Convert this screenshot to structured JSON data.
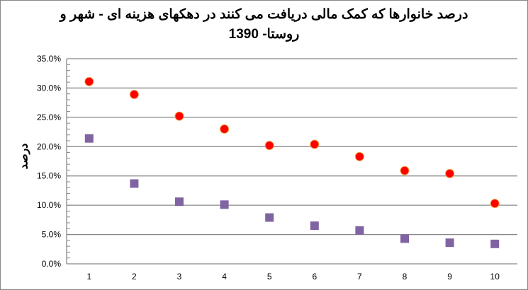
{
  "chart_data": {
    "type": "scatter",
    "title_line1": "درصد خانوارها که کمک مالی دریافت می کنند در دهکهای  هزینه ای - شهر و",
    "title_line2": "روستا- 1390",
    "xlabel": "",
    "ylabel": "درصد",
    "categories": [
      "1",
      "2",
      "3",
      "4",
      "5",
      "6",
      "7",
      "8",
      "9",
      "10"
    ],
    "ylim": [
      0,
      35
    ],
    "yticks": [
      "0.0%",
      "5.0%",
      "10.0%",
      "15.0%",
      "20.0%",
      "25.0%",
      "30.0%",
      "35.0%"
    ],
    "grid": true,
    "series": [
      {
        "marker": "circle",
        "color": "#ff0000",
        "values": [
          31.1,
          28.9,
          25.2,
          23.0,
          20.2,
          20.4,
          18.3,
          15.9,
          15.4,
          10.3
        ]
      },
      {
        "marker": "square",
        "color": "#8064a2",
        "values": [
          21.4,
          13.7,
          10.6,
          10.1,
          7.9,
          6.5,
          5.7,
          4.3,
          3.6,
          3.4
        ]
      }
    ]
  }
}
